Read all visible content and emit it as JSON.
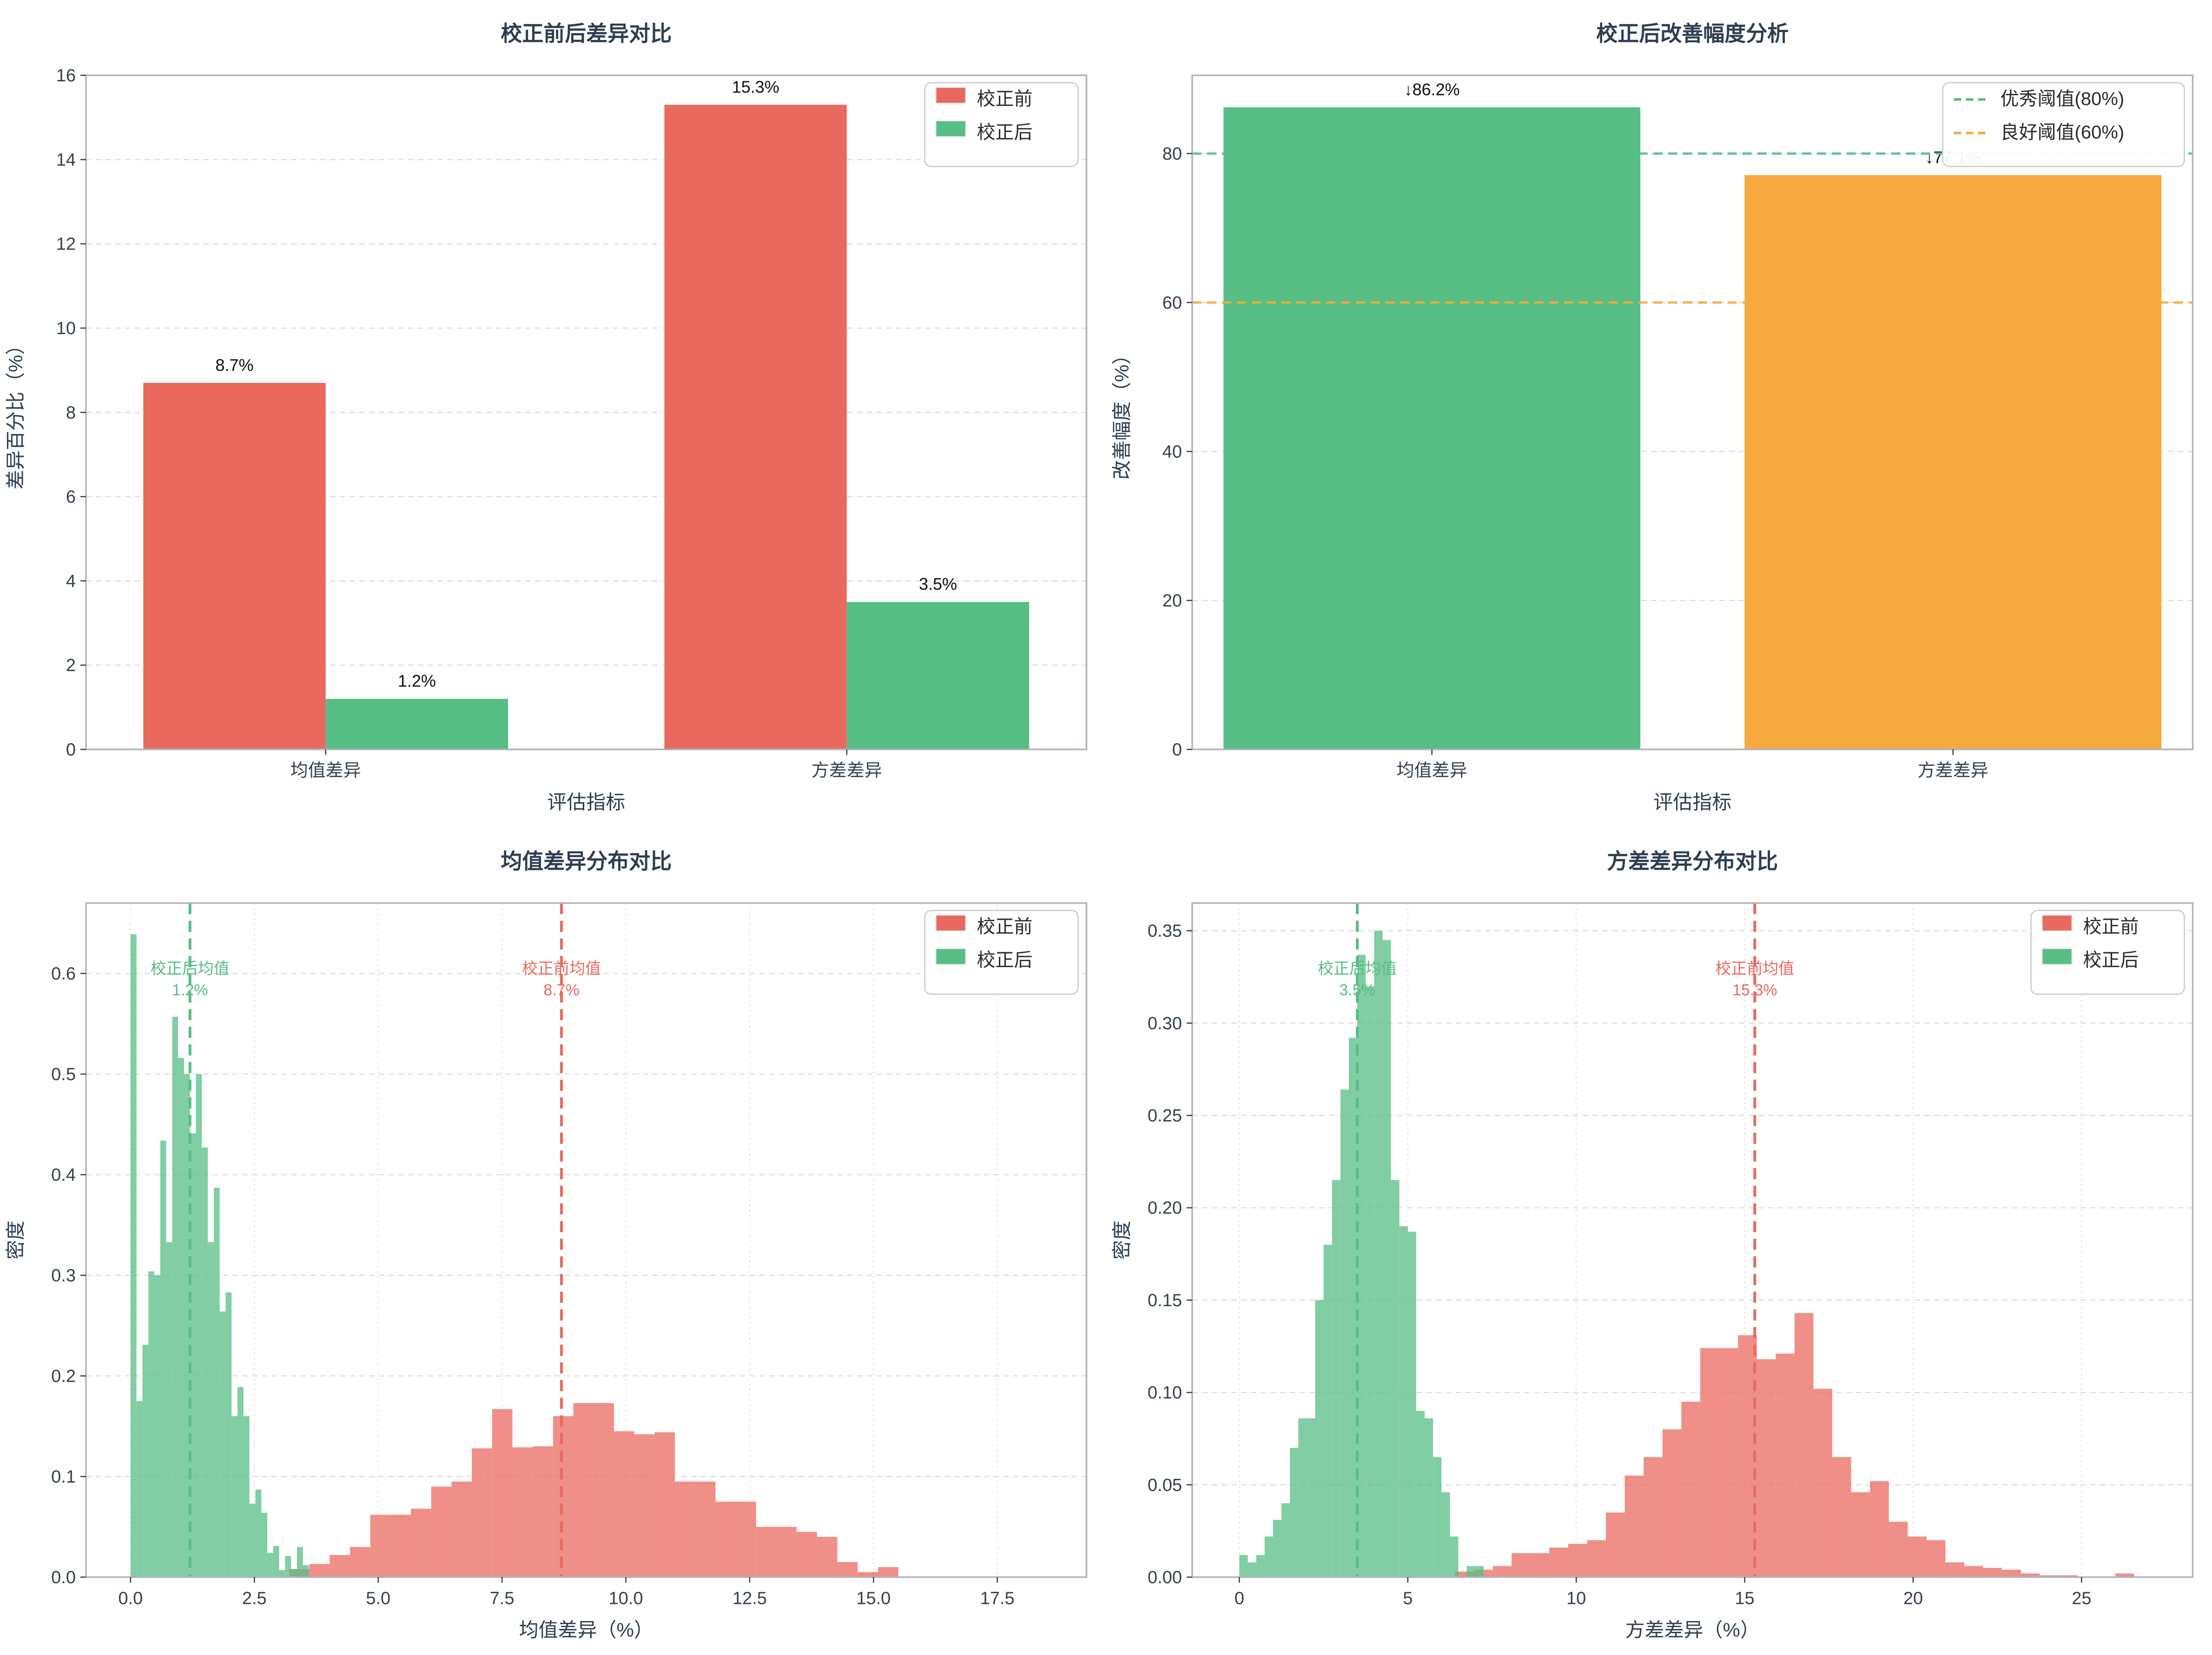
{
  "page": {
    "background": "#ffffff"
  },
  "palette": {
    "red": "#E9695F",
    "green": "#57BE85",
    "orange": "#F5A93F",
    "title_text": "#2E3D50",
    "tick_text": "#33404E",
    "label_text": "#111111",
    "legend_text": "#2A2A2A",
    "grid": "#DBDBDB",
    "spine": "#ADB5BD"
  },
  "chart_data": [
    {
      "id": "diff-before-after",
      "type": "bar",
      "title": "校正前后差异对比",
      "xlabel": "评估指标",
      "ylabel": "差异百分比（%）",
      "categories": [
        "均值差异",
        "方差差异"
      ],
      "x_centers": [
        0,
        1
      ],
      "series": [
        {
          "name": "校正前",
          "color": "red",
          "values": [
            8.7,
            15.3
          ],
          "labels": [
            "8.7%",
            "15.3%"
          ]
        },
        {
          "name": "校正后",
          "color": "green",
          "values": [
            1.2,
            3.5
          ],
          "labels": [
            "1.2%",
            "3.5%"
          ]
        }
      ],
      "bar_width": 0.35,
      "xlim": [
        -0.46,
        1.46
      ],
      "ylim": [
        0,
        16
      ],
      "xticks": [
        {
          "v": 0,
          "label": "均值差异"
        },
        {
          "v": 1,
          "label": "方差差异"
        }
      ],
      "yticks": [
        {
          "v": 0,
          "label": "0"
        },
        {
          "v": 2,
          "label": "2"
        },
        {
          "v": 4,
          "label": "4"
        },
        {
          "v": 6,
          "label": "6"
        },
        {
          "v": 8,
          "label": "8"
        },
        {
          "v": 10,
          "label": "10"
        },
        {
          "v": 12,
          "label": "12"
        },
        {
          "v": 14,
          "label": "14"
        },
        {
          "v": 16,
          "label": "16"
        }
      ],
      "grid": {
        "h": true,
        "v": false
      },
      "legend": {
        "kind": "patch",
        "items": [
          {
            "label": "校正前",
            "color": "red"
          },
          {
            "label": "校正后",
            "color": "green"
          }
        ]
      }
    },
    {
      "id": "improvement",
      "type": "bar",
      "title": "校正后改善幅度分析",
      "xlabel": "评估指标",
      "ylabel": "改善幅度（%）",
      "categories": [
        "均值差异",
        "方差差异"
      ],
      "x_centers": [
        0,
        1
      ],
      "series": [
        {
          "name": "改善幅度",
          "colors": [
            "green",
            "orange"
          ],
          "values": [
            86.2,
            77.1
          ],
          "labels": [
            "↓86.2%",
            "↓77.1%"
          ]
        }
      ],
      "bar_width": 0.8,
      "xlim": [
        -0.46,
        1.46
      ],
      "ylim": [
        0,
        90.5
      ],
      "xticks": [
        {
          "v": 0,
          "label": "均值差异"
        },
        {
          "v": 1,
          "label": "方差差异"
        }
      ],
      "yticks": [
        {
          "v": 0,
          "label": "0"
        },
        {
          "v": 20,
          "label": "20"
        },
        {
          "v": 40,
          "label": "40"
        },
        {
          "v": 60,
          "label": "60"
        },
        {
          "v": 80,
          "label": "80"
        }
      ],
      "grid": {
        "h": true,
        "v": false
      },
      "hlines": [
        {
          "y": 80,
          "color": "green",
          "name": "优秀阈值(80%)"
        },
        {
          "y": 60,
          "color": "orange",
          "name": "良好阈值(60%)"
        }
      ],
      "legend": {
        "kind": "dash",
        "items": [
          {
            "label": "优秀阈值(80%)",
            "color": "green"
          },
          {
            "label": "良好阈值(60%)",
            "color": "orange"
          }
        ]
      }
    },
    {
      "id": "mean-diff-distribution",
      "type": "histogram",
      "title": "均值差异分布对比",
      "xlabel": "均值差异（%）",
      "ylabel": "密度",
      "xlim": [
        -0.9,
        19.3
      ],
      "ylim": [
        0,
        0.67
      ],
      "xticks": [
        {
          "v": 0,
          "label": "0.0"
        },
        {
          "v": 2.5,
          "label": "2.5"
        },
        {
          "v": 5,
          "label": "5.0"
        },
        {
          "v": 7.5,
          "label": "7.5"
        },
        {
          "v": 10,
          "label": "10.0"
        },
        {
          "v": 12.5,
          "label": "12.5"
        },
        {
          "v": 15,
          "label": "15.0"
        },
        {
          "v": 17.5,
          "label": "17.5"
        }
      ],
      "yticks": [
        {
          "v": 0,
          "label": "0.0"
        },
        {
          "v": 0.1,
          "label": "0.1"
        },
        {
          "v": 0.2,
          "label": "0.2"
        },
        {
          "v": 0.3,
          "label": "0.3"
        },
        {
          "v": 0.4,
          "label": "0.4"
        },
        {
          "v": 0.5,
          "label": "0.5"
        },
        {
          "v": 0.6,
          "label": "0.6"
        }
      ],
      "grid": {
        "h": true,
        "v": true
      },
      "hists": [
        {
          "name": "校正前",
          "color": "red",
          "bin_start": 3.2,
          "bin_width": 0.41,
          "heights": [
            0.008,
            0.013,
            0.022,
            0.03,
            0.062,
            0.062,
            0.068,
            0.09,
            0.095,
            0.128,
            0.167,
            0.129,
            0.13,
            0.16,
            0.173,
            0.173,
            0.145,
            0.142,
            0.144,
            0.095,
            0.095,
            0.075,
            0.075,
            0.05,
            0.05,
            0.045,
            0.04,
            0.015,
            0.005,
            0.01
          ]
        },
        {
          "name": "校正后",
          "color": "green",
          "bin_start": 0.0,
          "bin_width": 0.12,
          "heights": [
            0.639,
            0.175,
            0.231,
            0.304,
            0.3,
            0.434,
            0.333,
            0.557,
            0.516,
            0.5,
            0.441,
            0.5,
            0.427,
            0.333,
            0.387,
            0.264,
            0.283,
            0.16,
            0.189,
            0.16,
            0.073,
            0.087,
            0.064,
            0.024,
            0.031,
            0.007,
            0.021,
            0.008,
            0.03,
            0.012
          ]
        }
      ],
      "vlines": [
        {
          "x": 8.7,
          "color": "red",
          "text": [
            "校正前均值",
            "8.7%"
          ]
        },
        {
          "x": 1.2,
          "color": "green",
          "text": [
            "校正后均值",
            "1.2%"
          ]
        }
      ],
      "legend": {
        "kind": "patch",
        "items": [
          {
            "label": "校正前",
            "color": "red"
          },
          {
            "label": "校正后",
            "color": "green"
          }
        ]
      }
    },
    {
      "id": "variance-diff-distribution",
      "type": "histogram",
      "title": "方差差异分布对比",
      "xlabel": "方差差异（%）",
      "ylabel": "密度",
      "xlim": [
        -1.4,
        28.3
      ],
      "ylim": [
        0,
        0.365
      ],
      "xticks": [
        {
          "v": 0,
          "label": "0"
        },
        {
          "v": 5,
          "label": "5"
        },
        {
          "v": 10,
          "label": "10"
        },
        {
          "v": 15,
          "label": "15"
        },
        {
          "v": 20,
          "label": "20"
        },
        {
          "v": 25,
          "label": "25"
        }
      ],
      "yticks": [
        {
          "v": 0,
          "label": "0.00"
        },
        {
          "v": 0.05,
          "label": "0.05"
        },
        {
          "v": 0.1,
          "label": "0.10"
        },
        {
          "v": 0.15,
          "label": "0.15"
        },
        {
          "v": 0.2,
          "label": "0.20"
        },
        {
          "v": 0.25,
          "label": "0.25"
        },
        {
          "v": 0.3,
          "label": "0.30"
        },
        {
          "v": 0.35,
          "label": "0.35"
        }
      ],
      "grid": {
        "h": true,
        "v": true
      },
      "hists": [
        {
          "name": "校正前",
          "color": "red",
          "bin_start": 6.4,
          "bin_width": 0.56,
          "heights": [
            0.003,
            0.004,
            0.006,
            0.013,
            0.013,
            0.016,
            0.018,
            0.02,
            0.035,
            0.055,
            0.065,
            0.08,
            0.095,
            0.124,
            0.124,
            0.131,
            0.118,
            0.121,
            0.143,
            0.102,
            0.065,
            0.046,
            0.052,
            0.03,
            0.022,
            0.02,
            0.008,
            0.006,
            0.005,
            0.004,
            0.002,
            0.001,
            0.001,
            0.0,
            0.0,
            0.002
          ]
        },
        {
          "name": "校正后",
          "color": "green",
          "bin_start": 0.0,
          "bin_width": 0.25,
          "heights": [
            0.012,
            0.008,
            0.012,
            0.022,
            0.031,
            0.04,
            0.07,
            0.086,
            0.086,
            0.15,
            0.18,
            0.215,
            0.264,
            0.292,
            0.337,
            0.32,
            0.35,
            0.345,
            0.215,
            0.19,
            0.187,
            0.09,
            0.086,
            0.065,
            0.046,
            0.022,
            0.0,
            0.006,
            0.006
          ]
        }
      ],
      "vlines": [
        {
          "x": 15.3,
          "color": "red",
          "text": [
            "校正前均值",
            "15.3%"
          ]
        },
        {
          "x": 3.5,
          "color": "green",
          "text": [
            "校正后均值",
            "3.5%"
          ]
        }
      ],
      "legend": {
        "kind": "patch",
        "items": [
          {
            "label": "校正前",
            "color": "red"
          },
          {
            "label": "校正后",
            "color": "green"
          }
        ]
      }
    }
  ]
}
